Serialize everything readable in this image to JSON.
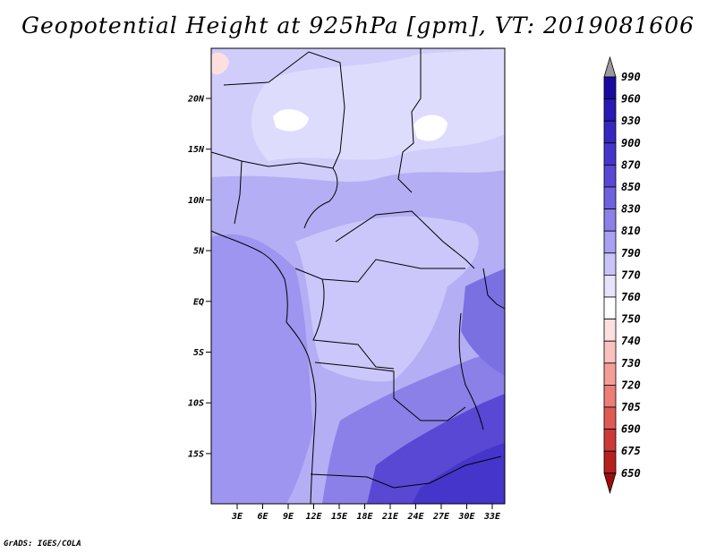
{
  "title": "Geopotential Height at 925hPa [gpm], VT: 2019081606",
  "credit": "GrADS: IGES/COLA",
  "map": {
    "lat_labels": [
      "20N",
      "15N",
      "10N",
      "5N",
      "EQ",
      "5S",
      "10S",
      "15S"
    ],
    "lon_labels": [
      "3E",
      "6E",
      "9E",
      "12E",
      "15E",
      "18E",
      "21E",
      "24E",
      "27E",
      "30E",
      "33E"
    ]
  },
  "colorbar": {
    "labels": [
      "990",
      "960",
      "930",
      "900",
      "870",
      "850",
      "830",
      "810",
      "790",
      "770",
      "760",
      "750",
      "740",
      "730",
      "720",
      "705",
      "690",
      "675",
      "650"
    ],
    "colors": [
      "#9a9a9a",
      "#1a0aa0",
      "#2a19b4",
      "#3726c0",
      "#4535ca",
      "#5848d3",
      "#6e62de",
      "#8a80e8",
      "#a8a0f0",
      "#c8c4f8",
      "#e6e4fd",
      "#ffffff",
      "#fde0de",
      "#fac2be",
      "#f49e98",
      "#ec7e78",
      "#e05a55",
      "#cd3a36",
      "#b4201e",
      "#9c0e0e"
    ]
  }
}
